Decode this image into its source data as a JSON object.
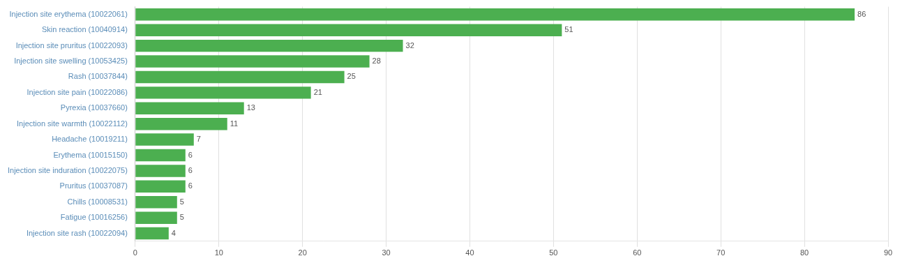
{
  "chart_data": {
    "type": "bar",
    "orientation": "horizontal",
    "categories": [
      "Injection site rash (10022094)",
      "Fatigue (10016256)",
      "Chills (10008531)",
      "Pruritus (10037087)",
      "Injection site induration (10022075)",
      "Erythema (10015150)",
      "Headache (10019211)",
      "Injection site warmth (10022112)",
      "Pyrexia (10037660)",
      "Injection site pain (10022086)",
      "Rash (10037844)",
      "Injection site swelling (10053425)",
      "Injection site pruritus (10022093)",
      "Skin reaction (10040914)",
      "Injection site erythema (10022061)"
    ],
    "values": [
      4,
      5,
      5,
      6,
      6,
      6,
      7,
      11,
      13,
      21,
      25,
      28,
      32,
      51,
      86
    ],
    "color": "#4caf50",
    "xlim": [
      0,
      90
    ],
    "xticks": [
      0,
      10,
      20,
      30,
      40,
      50,
      60,
      70,
      80,
      90
    ],
    "grid": true,
    "data_labels": true
  }
}
